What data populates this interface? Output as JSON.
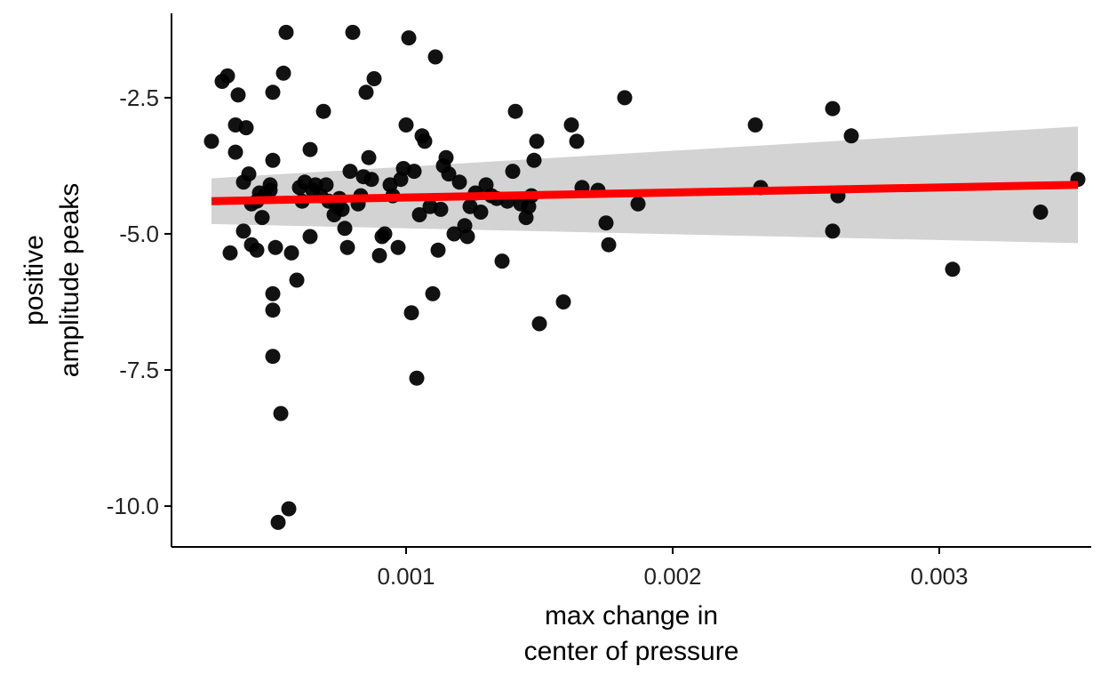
{
  "chart_data": {
    "type": "scatter",
    "title": "",
    "xlabel_lines": [
      "max change in",
      "center of pressure"
    ],
    "ylabel_lines": [
      "positive",
      "amplitude peaks"
    ],
    "xlim": [
      0.00012,
      0.00357
    ],
    "ylim": [
      -10.75,
      -0.95
    ],
    "xticks": [
      0.001,
      0.002,
      0.003
    ],
    "xtick_labels": [
      "0.001",
      "0.002",
      "0.003"
    ],
    "yticks": [
      -2.5,
      -5.0,
      -7.5,
      -10.0
    ],
    "ytick_labels": [
      "-2.5",
      "-5.0",
      "-7.5",
      "-10.0"
    ],
    "grid": false,
    "legend": "none",
    "colors": {
      "points": "#000000",
      "fit_line": "#ff0000",
      "confidence_band": "#d3d3d3",
      "axis": "#000000"
    },
    "fit": {
      "x": [
        0.00027,
        0.00352
      ],
      "y": [
        -4.4,
        -4.1
      ],
      "band_lower": [
        -4.82,
        -5.17
      ],
      "band_upper": [
        -3.98,
        -3.03
      ]
    },
    "points": [
      [
        0.00027,
        -3.3
      ],
      [
        0.00031,
        -2.2
      ],
      [
        0.00033,
        -2.1
      ],
      [
        0.00034,
        -5.35
      ],
      [
        0.00036,
        -3.5
      ],
      [
        0.00036,
        -3.0
      ],
      [
        0.00037,
        -2.45
      ],
      [
        0.00039,
        -4.05
      ],
      [
        0.00039,
        -4.95
      ],
      [
        0.0004,
        -3.05
      ],
      [
        0.00041,
        -3.9
      ],
      [
        0.00042,
        -4.45
      ],
      [
        0.00042,
        -5.2
      ],
      [
        0.00044,
        -5.3
      ],
      [
        0.00044,
        -4.4
      ],
      [
        0.00045,
        -4.25
      ],
      [
        0.00046,
        -4.7
      ],
      [
        0.00047,
        -4.3
      ],
      [
        0.00049,
        -4.1
      ],
      [
        0.00049,
        -4.2
      ],
      [
        0.0005,
        -3.65
      ],
      [
        0.0005,
        -2.4
      ],
      [
        0.0005,
        -6.1
      ],
      [
        0.0005,
        -6.4
      ],
      [
        0.0005,
        -7.25
      ],
      [
        0.00051,
        -5.25
      ],
      [
        0.00052,
        -10.3
      ],
      [
        0.00053,
        -8.3
      ],
      [
        0.00054,
        -2.05
      ],
      [
        0.00055,
        -1.3
      ],
      [
        0.00056,
        -10.05
      ],
      [
        0.00057,
        -5.35
      ],
      [
        0.00059,
        -5.85
      ],
      [
        0.0006,
        -4.15
      ],
      [
        0.00061,
        -4.4
      ],
      [
        0.00062,
        -4.05
      ],
      [
        0.00064,
        -3.45
      ],
      [
        0.00064,
        -5.05
      ],
      [
        0.00065,
        -4.2
      ],
      [
        0.00066,
        -4.1
      ],
      [
        0.00068,
        -4.3
      ],
      [
        0.00069,
        -2.75
      ],
      [
        0.0007,
        -4.1
      ],
      [
        0.00071,
        -4.4
      ],
      [
        0.00073,
        -4.65
      ],
      [
        0.00074,
        -4.5
      ],
      [
        0.00075,
        -4.35
      ],
      [
        0.00076,
        -4.55
      ],
      [
        0.00077,
        -4.9
      ],
      [
        0.00078,
        -5.25
      ],
      [
        0.00079,
        -3.85
      ],
      [
        0.0008,
        -1.3
      ],
      [
        0.00082,
        -4.45
      ],
      [
        0.00083,
        -4.3
      ],
      [
        0.00084,
        -3.95
      ],
      [
        0.00085,
        -2.4
      ],
      [
        0.00086,
        -3.6
      ],
      [
        0.00087,
        -4.0
      ],
      [
        0.00088,
        -2.15
      ],
      [
        0.0009,
        -5.4
      ],
      [
        0.00091,
        -5.05
      ],
      [
        0.00092,
        -5.0
      ],
      [
        0.00094,
        -4.1
      ],
      [
        0.00095,
        -4.3
      ],
      [
        0.00097,
        -5.25
      ],
      [
        0.00098,
        -4.0
      ],
      [
        0.00099,
        -3.8
      ],
      [
        0.001,
        -3.0
      ],
      [
        0.00101,
        -1.4
      ],
      [
        0.00102,
        -6.45
      ],
      [
        0.00103,
        -3.85
      ],
      [
        0.00104,
        -7.65
      ],
      [
        0.00105,
        -4.65
      ],
      [
        0.00106,
        -3.2
      ],
      [
        0.00107,
        -3.3
      ],
      [
        0.00109,
        -4.5
      ],
      [
        0.0011,
        -6.1
      ],
      [
        0.00111,
        -1.75
      ],
      [
        0.00112,
        -5.3
      ],
      [
        0.00113,
        -4.55
      ],
      [
        0.00114,
        -3.75
      ],
      [
        0.00115,
        -3.6
      ],
      [
        0.00116,
        -3.9
      ],
      [
        0.00118,
        -5.0
      ],
      [
        0.0012,
        -4.05
      ],
      [
        0.00122,
        -4.85
      ],
      [
        0.00123,
        -5.05
      ],
      [
        0.00124,
        -4.5
      ],
      [
        0.00126,
        -4.25
      ],
      [
        0.00128,
        -4.6
      ],
      [
        0.0013,
        -4.1
      ],
      [
        0.00132,
        -4.3
      ],
      [
        0.00134,
        -4.35
      ],
      [
        0.00136,
        -5.5
      ],
      [
        0.00138,
        -4.4
      ],
      [
        0.0014,
        -3.85
      ],
      [
        0.00141,
        -2.75
      ],
      [
        0.00143,
        -4.45
      ],
      [
        0.00145,
        -4.7
      ],
      [
        0.00146,
        -4.5
      ],
      [
        0.00147,
        -4.3
      ],
      [
        0.00148,
        -3.65
      ],
      [
        0.00149,
        -3.3
      ],
      [
        0.0015,
        -6.65
      ],
      [
        0.00159,
        -6.25
      ],
      [
        0.00162,
        -3.0
      ],
      [
        0.00164,
        -3.3
      ],
      [
        0.00166,
        -4.15
      ],
      [
        0.00172,
        -4.2
      ],
      [
        0.00175,
        -4.8
      ],
      [
        0.00176,
        -5.2
      ],
      [
        0.00182,
        -2.5
      ],
      [
        0.00187,
        -4.45
      ],
      [
        0.00231,
        -3.0
      ],
      [
        0.00233,
        -4.15
      ],
      [
        0.0026,
        -2.7
      ],
      [
        0.0026,
        -4.95
      ],
      [
        0.00262,
        -4.3
      ],
      [
        0.00267,
        -3.2
      ],
      [
        0.00305,
        -5.65
      ],
      [
        0.00338,
        -4.6
      ],
      [
        0.00352,
        -4.0
      ]
    ]
  }
}
